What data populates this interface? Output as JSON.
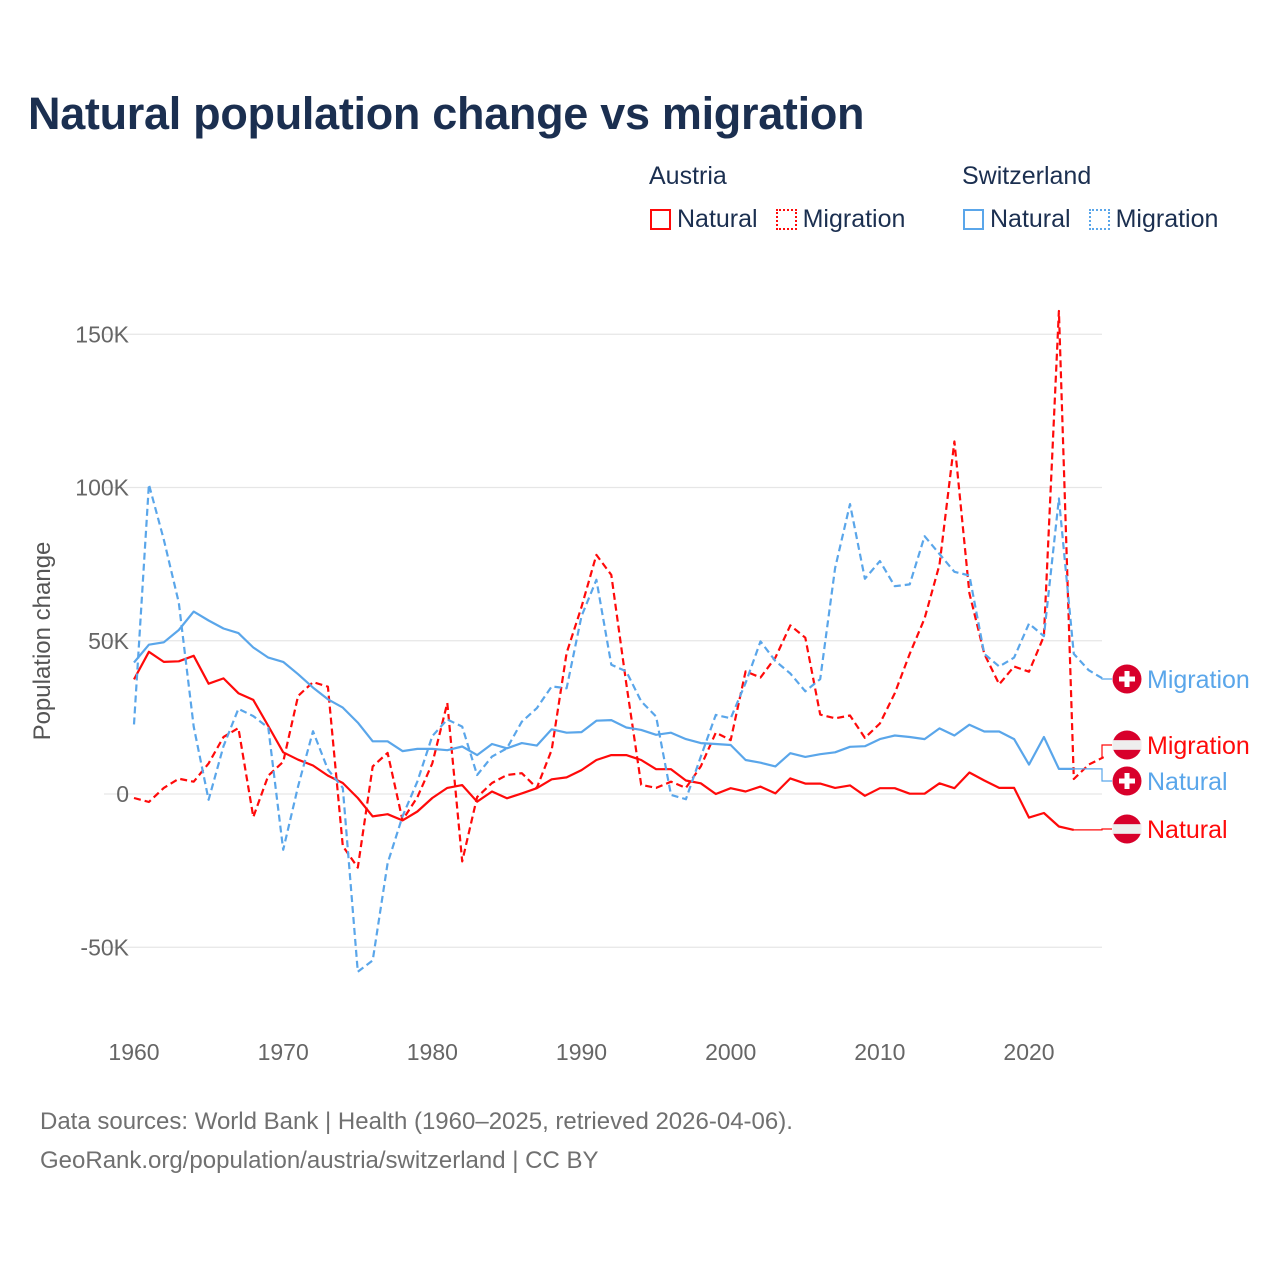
{
  "chart_data": {
    "type": "line",
    "title": "Natural population change vs migration",
    "xlabel": "",
    "ylabel": "Population change",
    "x_ticks": [
      "1960",
      "1970",
      "1980",
      "1990",
      "2000",
      "2010",
      "2020"
    ],
    "y_ticks": [
      {
        "value": -50000,
        "label": "-50K"
      },
      {
        "value": 0,
        "label": "0"
      },
      {
        "value": 50000,
        "label": "50K"
      },
      {
        "value": 100000,
        "label": "100K"
      },
      {
        "value": 150000,
        "label": "150K"
      }
    ],
    "xlim": [
      1960,
      2025
    ],
    "ylim": [
      -65000,
      160000
    ],
    "grid": true,
    "legend_placement": "top-right",
    "legend": {
      "groups": [
        {
          "name": "Austria",
          "items": [
            "Natural",
            "Migration"
          ]
        },
        {
          "name": "Switzerland",
          "items": [
            "Natural",
            "Migration"
          ]
        }
      ]
    },
    "colors": {
      "austria": "#ff0a0a",
      "switzerland": "#5aa6ea",
      "flag_red": "#d8002b"
    },
    "start_year": 1960,
    "series": [
      {
        "name": "Austria Natural",
        "country": "austria",
        "kind": "natural",
        "end_label": "Natural",
        "values": [
          37400,
          46400,
          43100,
          43300,
          45100,
          36000,
          37700,
          32900,
          30700,
          22200,
          13600,
          11200,
          9300,
          6000,
          3600,
          -1300,
          -7300,
          -6600,
          -8600,
          -5700,
          -1300,
          2000,
          2900,
          -2500,
          800,
          -1400,
          200,
          1900,
          4800,
          5400,
          7800,
          11100,
          12700,
          12700,
          11100,
          8100,
          8100,
          4400,
          3500,
          0,
          1900,
          800,
          2400,
          200,
          5100,
          3400,
          3400,
          2000,
          2800,
          -600,
          1900,
          1900,
          100,
          100,
          3500,
          1900,
          7000,
          4400,
          2000,
          2000,
          -7700,
          -6200,
          -10600,
          -11700
        ]
      },
      {
        "name": "Austria Migration",
        "country": "austria",
        "kind": "migration",
        "end_label": "Migration",
        "values": [
          -1300,
          -2600,
          2000,
          5000,
          4000,
          10000,
          18600,
          21500,
          -7500,
          6000,
          10500,
          32000,
          36500,
          35000,
          -17000,
          -24000,
          9000,
          13400,
          -8500,
          -1000,
          10000,
          29700,
          -22000,
          -1000,
          3600,
          6200,
          6800,
          2000,
          14400,
          46000,
          61000,
          78000,
          71500,
          36000,
          3000,
          2000,
          4000,
          2000,
          9000,
          20000,
          17600,
          40000,
          38000,
          44500,
          55000,
          51000,
          25900,
          24700,
          25600,
          18300,
          23000,
          32900,
          45700,
          57300,
          74800,
          115000,
          65500,
          45700,
          35800,
          41600,
          39900,
          51500,
          157600,
          4900,
          9600,
          12000
        ]
      },
      {
        "name": "Switzerland Natural",
        "country": "switzerland",
        "kind": "natural",
        "end_label": "Natural",
        "values": [
          42900,
          48700,
          49500,
          53500,
          59500,
          56600,
          54000,
          52500,
          47800,
          44500,
          43100,
          39100,
          34700,
          30900,
          28200,
          23300,
          17200,
          17200,
          14000,
          14700,
          14700,
          14300,
          15500,
          12700,
          16300,
          14900,
          16600,
          15800,
          21100,
          20000,
          20200,
          23900,
          24100,
          21700,
          20900,
          19300,
          20000,
          17900,
          16600,
          16300,
          16000,
          11100,
          10200,
          9000,
          13300,
          12100,
          13000,
          13600,
          15400,
          15600,
          17900,
          19100,
          18600,
          17900,
          21400,
          19100,
          22600,
          20400,
          20400,
          17900,
          9600,
          18600,
          8200,
          8200
        ]
      },
      {
        "name": "Switzerland Migration",
        "country": "switzerland",
        "kind": "migration",
        "end_label": "Migration",
        "values": [
          22700,
          101000,
          83000,
          62400,
          22000,
          -1900,
          15600,
          27800,
          25400,
          21600,
          -18200,
          2500,
          20500,
          8000,
          2000,
          -58000,
          -54300,
          -22600,
          -7300,
          4100,
          18900,
          24300,
          22000,
          6200,
          12200,
          14900,
          23600,
          28000,
          35100,
          34500,
          58000,
          69900,
          42200,
          40000,
          30200,
          25300,
          -300,
          -1700,
          12200,
          25800,
          24700,
          36200,
          49800,
          43400,
          39300,
          33500,
          37500,
          73700,
          94600,
          70200,
          76000,
          67800,
          68400,
          84100,
          78300,
          72500,
          71300,
          45700,
          41600,
          44500,
          55600,
          51500,
          96400,
          45700,
          40400,
          37500
        ]
      }
    ],
    "source_note": "Data sources: World Bank | Health (1960–2025, retrieved 2026-04-06).",
    "credit": "GeoRank.org/population/austria/switzerland | CC BY"
  },
  "legend_labels": {
    "austria": "Austria",
    "switzerland": "Switzerland",
    "natural": "Natural",
    "migration": "Migration"
  }
}
